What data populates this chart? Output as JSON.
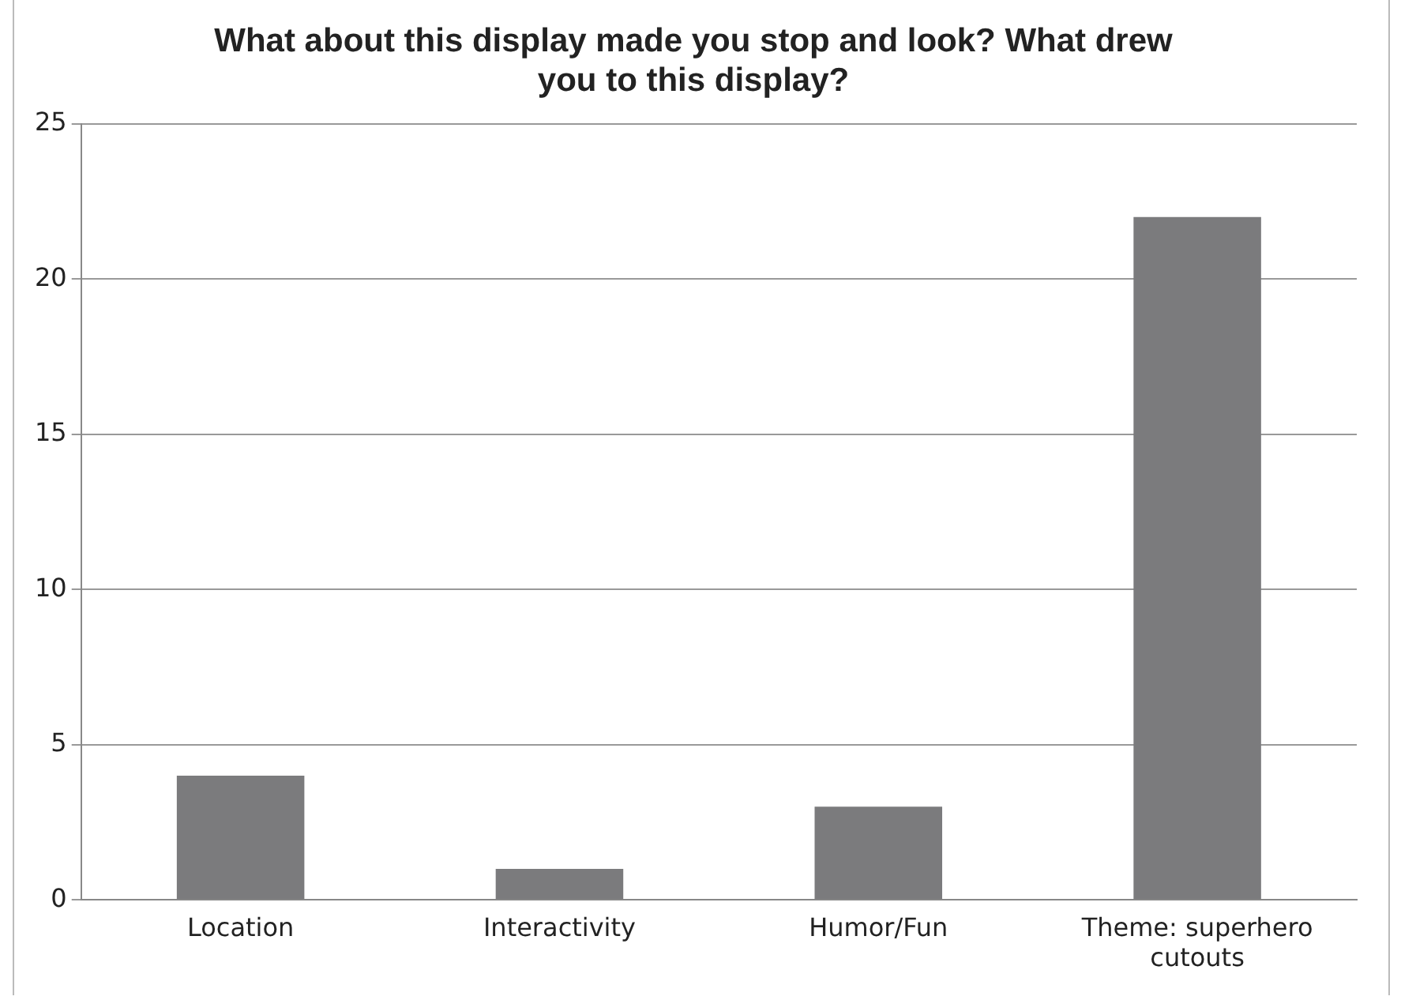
{
  "chart_data": {
    "type": "bar",
    "title": "What about this display made you stop and look? What drew you to this display?",
    "categories": [
      "Location",
      "Interactivity",
      "Humor/Fun",
      "Theme: superhero cutouts"
    ],
    "values": [
      4,
      1,
      3,
      22
    ],
    "color": "#7b7b7d",
    "ylim": [
      0,
      25
    ],
    "yticks": [
      0,
      5,
      10,
      15,
      20,
      25
    ],
    "grid": "y"
  }
}
